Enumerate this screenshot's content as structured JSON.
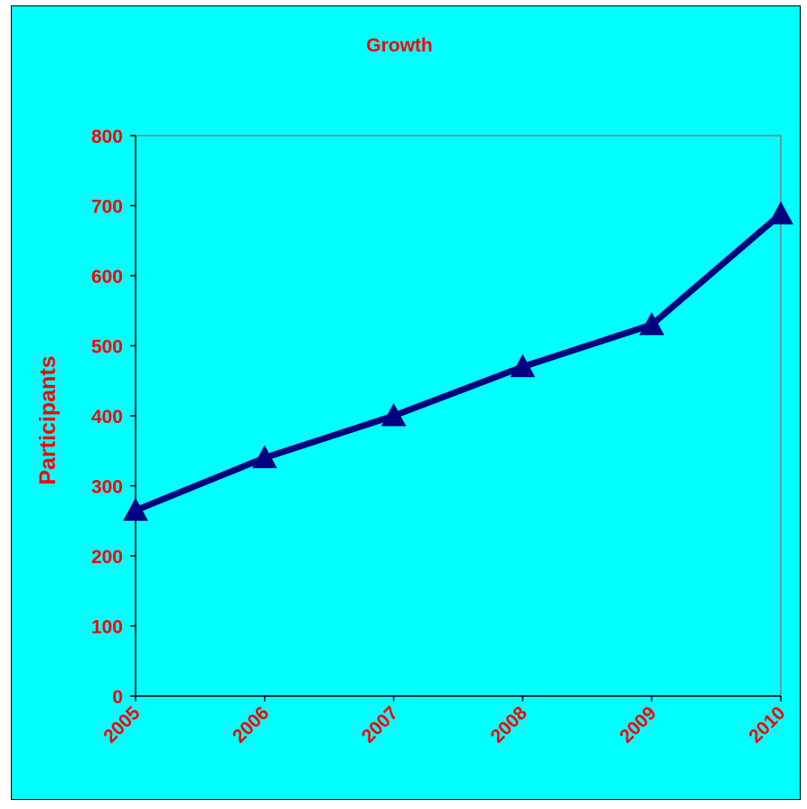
{
  "chart_data": {
    "type": "line",
    "title": "Growth",
    "xlabel": "",
    "ylabel": "Participants",
    "categories": [
      "2005",
      "2006",
      "2007",
      "2008",
      "2009",
      "2010"
    ],
    "series": [
      {
        "values": [
          265,
          340,
          400,
          470,
          530,
          688
        ]
      }
    ],
    "ylim": [
      0,
      800
    ],
    "yticks": [
      0,
      100,
      200,
      300,
      400,
      500,
      600,
      700,
      800
    ],
    "grid": false,
    "legend": "none",
    "marker": "triangle",
    "colors": {
      "background": "#00ffff",
      "line": "#000080",
      "text": "#ff0000",
      "axis": "#808080"
    }
  }
}
